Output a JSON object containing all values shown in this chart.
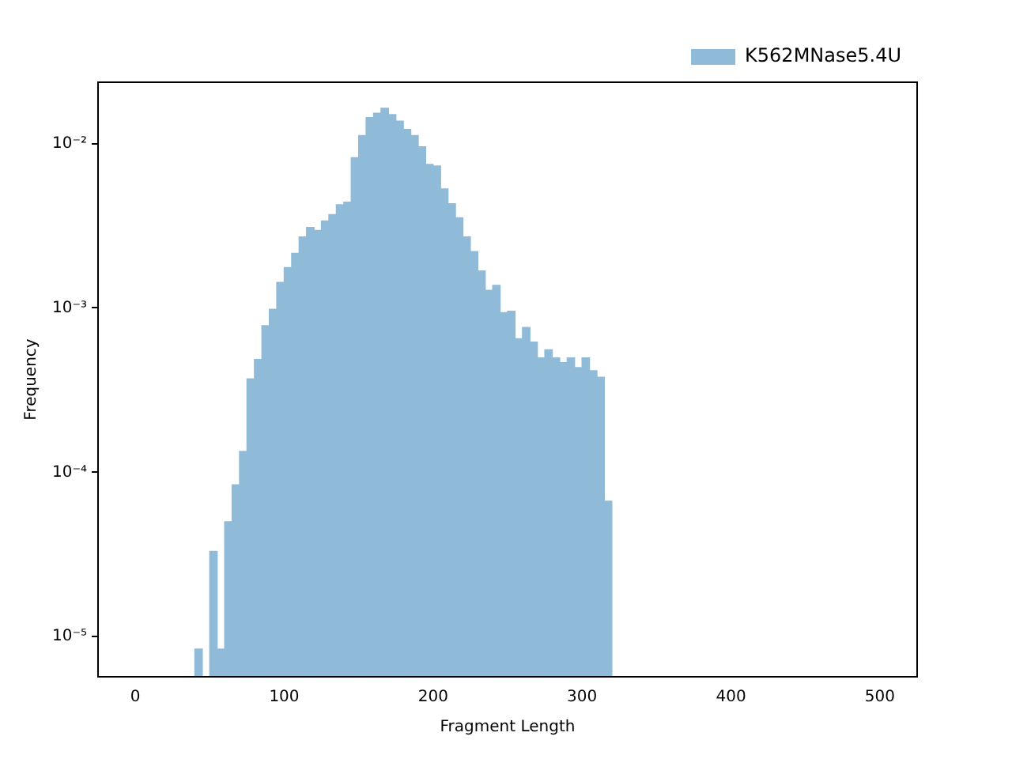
{
  "chart_data": {
    "type": "histogram",
    "xlabel": "Fragment Length",
    "ylabel": "Frequency",
    "bins": [
      40,
      45,
      50,
      55,
      60,
      65,
      70,
      75,
      80,
      85,
      90,
      95,
      100,
      105,
      110,
      115,
      120,
      125,
      130,
      135,
      140,
      145,
      150,
      155,
      160,
      165,
      170,
      175,
      180,
      185,
      190,
      195,
      200,
      205,
      210,
      215,
      220,
      225,
      230,
      235,
      240,
      245,
      250,
      255,
      260,
      265,
      270,
      275,
      280,
      285,
      290,
      295,
      300,
      305,
      310,
      315,
      320
    ],
    "series": [
      {
        "name": "K562MNase5.4U",
        "color": "#8fbbd9",
        "values": [
          8.4e-06,
          null,
          3.3e-05,
          8.4e-06,
          5e-05,
          8.4e-05,
          0.000134,
          0.00037,
          0.000485,
          0.00078,
          0.00098,
          0.00143,
          0.00176,
          0.00215,
          0.0027,
          0.00309,
          0.00296,
          0.00338,
          0.0037,
          0.00424,
          0.0044,
          0.0082,
          0.0112,
          0.0144,
          0.0153,
          0.0164,
          0.015,
          0.0137,
          0.0122,
          0.0112,
          0.00955,
          0.00746,
          0.0073,
          0.0053,
          0.0043,
          0.00354,
          0.0027,
          0.0022,
          0.00168,
          0.00128,
          0.00137,
          0.000935,
          0.000955,
          0.00065,
          0.00076,
          0.00062,
          0.000497,
          0.000556,
          0.000497,
          0.000465,
          0.000497,
          0.000434,
          0.000497,
          0.000415,
          0.000379,
          6.67e-05
        ]
      }
    ],
    "xlim": [
      -25,
      525
    ],
    "xticks": [
      0,
      100,
      200,
      300,
      400,
      500
    ],
    "log": "y",
    "ylim": [
      5.7e-06,
      0.0236
    ],
    "yticks": [
      {
        "value": 1e-05,
        "label": "10⁻⁵"
      },
      {
        "value": 0.0001,
        "label": "10⁻⁴"
      },
      {
        "value": 0.001,
        "label": "10⁻³"
      },
      {
        "value": 0.01,
        "label": "10⁻²"
      }
    ],
    "grid": false,
    "legend": "top right"
  }
}
